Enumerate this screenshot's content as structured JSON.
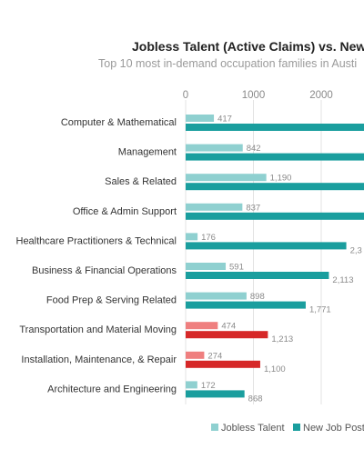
{
  "chart_data": {
    "type": "bar",
    "orientation": "horizontal",
    "title": "Jobless Talent (Active Claims) vs. New J",
    "subtitle": "Top 10 most in-demand occupation families in Austi",
    "categories": [
      "Computer & Mathematical",
      "Management",
      "Sales & Related",
      "Office & Admin Support",
      "Healthcare Practitioners & Technical",
      "Business & Financial Operations",
      "Food Prep & Serving Related",
      "Transportation and Material Moving",
      "Installation, Maintenance, & Repair",
      "Architecture and Engineering"
    ],
    "xlim": [
      0,
      2600
    ],
    "xticks": [
      0,
      1000,
      2000
    ],
    "tick_labels": [
      "0",
      "1000",
      "2000"
    ],
    "grid": true,
    "legend_position": "bottom",
    "highlighted_categories": [
      "Transportation and Material Moving",
      "Installation, Maintenance, & Repair"
    ],
    "series": [
      {
        "name": "Jobless Talent",
        "color": "#8fd0d0",
        "highlight_color": "#ef7f7f",
        "values": [
          417,
          842,
          1190,
          837,
          176,
          591,
          898,
          474,
          274,
          172
        ],
        "labels": [
          "417",
          "842",
          "1,190",
          "837",
          "176",
          "591",
          "898",
          "474",
          "274",
          "172"
        ]
      },
      {
        "name": "New Job Postin",
        "color": "#1a9e9e",
        "highlight_color": "#d62828",
        "values": [
          2650,
          2650,
          2650,
          2650,
          2370,
          2113,
          1771,
          1213,
          1100,
          868
        ],
        "labels": [
          "",
          "",
          "",
          "",
          "2,3",
          "2,113",
          "1,771",
          "1,213",
          "1,100",
          "868"
        ]
      }
    ]
  }
}
